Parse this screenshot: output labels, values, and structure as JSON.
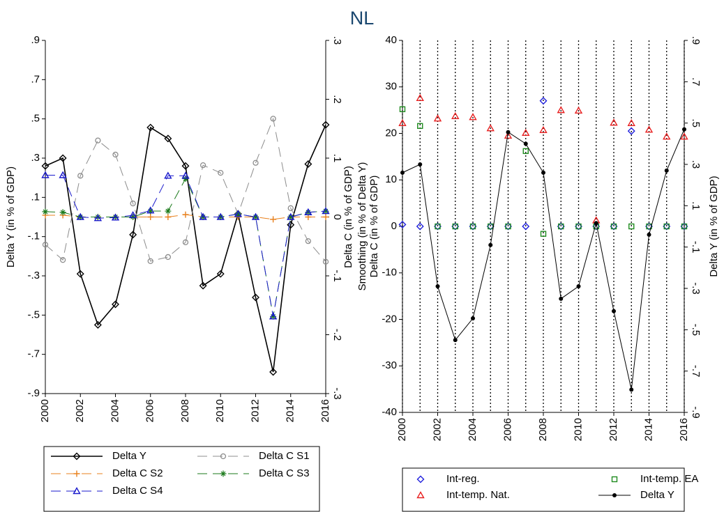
{
  "title": "NL",
  "chart_data": [
    {
      "type": "line",
      "ylabel": "Delta Y (in % of GDP)",
      "y2label": "Delta C (in % of GDP)",
      "x": [
        2000,
        2001,
        2002,
        2003,
        2004,
        2005,
        2006,
        2007,
        2008,
        2009,
        2010,
        2011,
        2012,
        2013,
        2014,
        2015,
        2016
      ],
      "xlim": [
        2000,
        2016
      ],
      "xticks": [
        2000,
        2002,
        2004,
        2006,
        2008,
        2010,
        2012,
        2014,
        2016
      ],
      "ylim": [
        -0.9,
        0.9
      ],
      "yticks": [
        {
          "value": 0.9,
          "label": ".9"
        },
        {
          "value": 0.7,
          "label": ".7"
        },
        {
          "value": 0.5,
          "label": ".5"
        },
        {
          "value": 0.3,
          "label": ".3"
        },
        {
          "value": 0.1,
          "label": ".1"
        },
        {
          "value": -0.1,
          "label": "-.1"
        },
        {
          "value": -0.3,
          "label": "-.3"
        },
        {
          "value": -0.5,
          "label": "-.5"
        },
        {
          "value": -0.7,
          "label": "-.7"
        },
        {
          "value": -0.9,
          "label": "-.9"
        }
      ],
      "y2lim": [
        -0.3,
        0.3
      ],
      "y2ticks": [
        {
          "value": 0.3,
          "label": ".3"
        },
        {
          "value": 0.2,
          "label": ".2"
        },
        {
          "value": 0.1,
          "label": ".1"
        },
        0,
        {
          "value": -0.1,
          "label": "-.1"
        },
        {
          "value": -0.2,
          "label": "-.2"
        },
        {
          "value": -0.3,
          "label": "-.3"
        }
      ],
      "xgrid": false,
      "legend": "bottom",
      "series": [
        {
          "name": "Delta Y",
          "color": "#000000",
          "marker": "diamond",
          "line": "solid",
          "values": [
            0.26,
            0.3,
            -0.29,
            -0.55,
            -0.445,
            -0.09,
            0.456,
            0.4,
            0.26,
            -0.35,
            -0.29,
            0.016,
            -0.41,
            -0.79,
            -0.04,
            0.27,
            0.47
          ]
        },
        {
          "name": "Delta C S1",
          "color": "#8c8c8c",
          "marker": "circle",
          "line": "dash",
          "axis": "y2",
          "values": [
            -0.047,
            -0.073,
            0.07,
            0.13,
            0.106,
            0.023,
            -0.075,
            -0.068,
            -0.043,
            0.088,
            0.075,
            0.005,
            0.092,
            0.167,
            0.015,
            -0.041,
            -0.076
          ]
        },
        {
          "name": "Delta C S2",
          "color": "#e8801c",
          "marker": "plus",
          "line": "dash",
          "axis": "y2",
          "values": [
            0.003,
            0.003,
            0,
            0,
            0,
            0,
            0,
            0,
            0.004,
            0,
            0,
            0,
            0,
            -0.004,
            0,
            0,
            0
          ]
        },
        {
          "name": "Delta C S3",
          "color": "#1a7a1a",
          "marker": "star",
          "line": "dash",
          "axis": "y2",
          "values": [
            0.009,
            0.008,
            0,
            0,
            0,
            0,
            0.01,
            0.01,
            0.065,
            0,
            0,
            0.005,
            0,
            -0.169,
            0,
            0.008,
            0.01
          ]
        },
        {
          "name": "Delta C S4",
          "color": "#1a1acc",
          "marker": "triangle",
          "line": "dash",
          "axis": "y2",
          "values": [
            0.071,
            0.071,
            0,
            -0.002,
            -0.001,
            0.003,
            0.011,
            0.07,
            0.07,
            0,
            0,
            0.005,
            0,
            -0.169,
            0,
            0.008,
            0.01
          ]
        }
      ]
    },
    {
      "type": "line",
      "ylabel": [
        "Smoothing (in % of Delta Y)",
        "Delta C (in % of GDP)"
      ],
      "y2label": "Delta Y (in % of GDP)",
      "x": [
        2000,
        2001,
        2002,
        2003,
        2004,
        2005,
        2006,
        2007,
        2008,
        2009,
        2010,
        2011,
        2012,
        2013,
        2014,
        2015,
        2016
      ],
      "xlim": [
        2000,
        2016
      ],
      "xticks": [
        2000,
        2002,
        2004,
        2006,
        2008,
        2010,
        2012,
        2014,
        2016
      ],
      "ylim": [
        -40,
        40
      ],
      "yticks": [
        40,
        30,
        20,
        10,
        0,
        -10,
        -20,
        -30,
        -40
      ],
      "y2lim": [
        -0.9,
        0.9
      ],
      "y2ticks": [
        {
          "value": 0.9,
          "label": ".9"
        },
        {
          "value": 0.7,
          "label": ".7"
        },
        {
          "value": 0.5,
          "label": ".5"
        },
        {
          "value": 0.3,
          "label": ".3"
        },
        {
          "value": 0.1,
          "label": ".1"
        },
        {
          "value": -0.1,
          "label": "-.1"
        },
        {
          "value": -0.3,
          "label": "-.3"
        },
        {
          "value": -0.5,
          "label": "-.5"
        },
        {
          "value": -0.7,
          "label": "-.7"
        },
        {
          "value": -0.9,
          "label": "-.9"
        }
      ],
      "xgrid": true,
      "legend": "bottom",
      "series": [
        {
          "name": "Int-reg.",
          "color": "#2222dd",
          "marker": "diamond",
          "line": "none",
          "values": [
            0.4,
            0,
            0,
            0,
            0,
            0,
            0,
            0,
            27,
            0,
            0,
            0,
            0,
            20.5,
            0,
            0,
            0
          ]
        },
        {
          "name": "Int-temp. EA",
          "color": "#1e8a1e",
          "marker": "square",
          "line": "none",
          "values": [
            25.2,
            21.6,
            0,
            0,
            0,
            0,
            0,
            16.2,
            -1.6,
            0,
            0,
            0,
            0,
            0,
            0,
            0,
            0
          ]
        },
        {
          "name": "Int-temp. Nat.",
          "color": "#e82020",
          "marker": "triangle",
          "line": "none",
          "values": [
            22.2,
            27.6,
            23.2,
            23.7,
            23.5,
            21.1,
            19.5,
            20.1,
            20.7,
            25,
            24.9,
            1.3,
            22.3,
            22.2,
            20.8,
            19.3,
            19.3
          ]
        },
        {
          "name": "Delta Y",
          "color": "#000000",
          "marker": "dot",
          "line": "thin",
          "axis": "y2",
          "values": [
            0.26,
            0.3,
            -0.29,
            -0.55,
            -0.445,
            -0.09,
            0.456,
            0.4,
            0.26,
            -0.35,
            -0.29,
            0.016,
            -0.41,
            -0.79,
            -0.04,
            0.27,
            0.47
          ]
        }
      ]
    }
  ]
}
